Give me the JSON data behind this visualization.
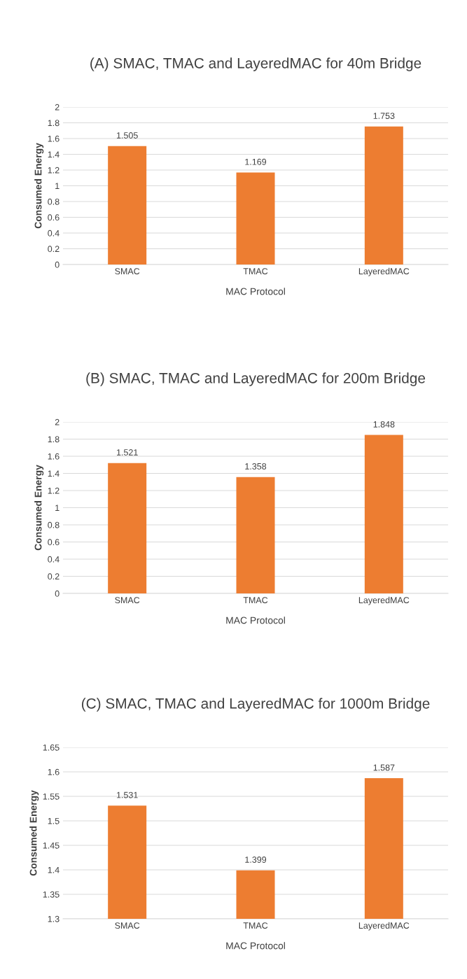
{
  "chart_data": [
    {
      "type": "bar",
      "title": "(A) SMAC, TMAC and LayeredMAC for 40m Bridge",
      "xlabel": "MAC Protocol",
      "ylabel": "Consumed Energy",
      "categories": [
        "SMAC",
        "TMAC",
        "LayeredMAC"
      ],
      "values": [
        1.505,
        1.169,
        1.753
      ],
      "color": "#ed7d31",
      "ylim": [
        0,
        2
      ],
      "yticks": [
        0,
        0.2,
        0.4,
        0.6,
        0.8,
        1,
        1.2,
        1.4,
        1.6,
        1.8,
        2
      ],
      "grid": "y",
      "data_labels": true
    },
    {
      "type": "bar",
      "title": "(B) SMAC, TMAC and LayeredMAC for 200m Bridge",
      "xlabel": "MAC Protocol",
      "ylabel": "Consumed Energy",
      "categories": [
        "SMAC",
        "TMAC",
        "LayeredMAC"
      ],
      "values": [
        1.521,
        1.358,
        1.848
      ],
      "color": "#ed7d31",
      "ylim": [
        0,
        2
      ],
      "yticks": [
        0,
        0.2,
        0.4,
        0.6,
        0.8,
        1,
        1.2,
        1.4,
        1.6,
        1.8,
        2
      ],
      "grid": "y",
      "data_labels": true
    },
    {
      "type": "bar",
      "title": "(C) SMAC, TMAC and LayeredMAC for 1000m Bridge",
      "xlabel": "MAC Protocol",
      "ylabel": "Consumed Energy",
      "categories": [
        "SMAC",
        "TMAC",
        "LayeredMAC"
      ],
      "values": [
        1.531,
        1.399,
        1.587
      ],
      "color": "#ed7d31",
      "ylim": [
        1.3,
        1.65
      ],
      "yticks": [
        1.3,
        1.35,
        1.4,
        1.45,
        1.5,
        1.55,
        1.6,
        1.65
      ],
      "grid": "y",
      "data_labels": true
    }
  ]
}
